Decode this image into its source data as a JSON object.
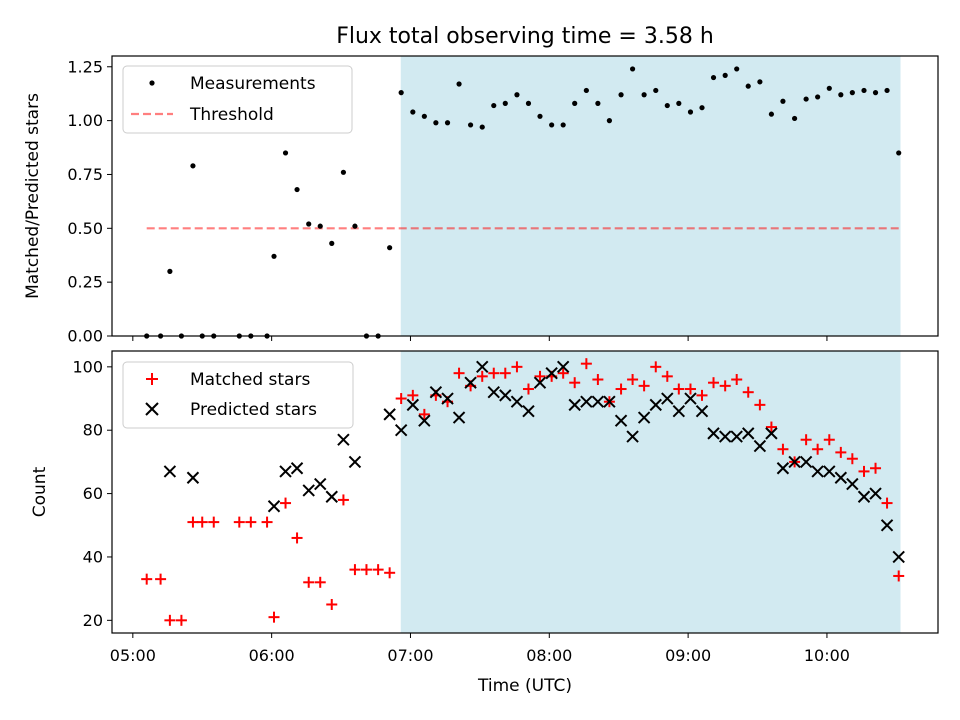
{
  "chart_data": [
    {
      "type": "scatter",
      "title": "Flux total observing time = 3.58 h",
      "xlabel": "",
      "ylabel": "Matched/Predicted stars",
      "xlim": [
        4.85,
        10.8
      ],
      "ylim": [
        0.0,
        1.3
      ],
      "yticks": [
        "0.00",
        "0.25",
        "0.50",
        "0.75",
        "1.00",
        "1.25"
      ],
      "yticks_values": [
        0.0,
        0.25,
        0.5,
        0.75,
        1.0,
        1.25
      ],
      "shaded_span": [
        6.93,
        10.53
      ],
      "shade_color": "#add8e6",
      "legend": {
        "position": "upper left",
        "entries": [
          "Measurements",
          "Threshold"
        ]
      },
      "threshold": {
        "name": "Threshold",
        "value": 0.5,
        "x_range": [
          5.1,
          10.53
        ],
        "color": "#ff0000"
      },
      "series": [
        {
          "name": "Measurements",
          "color": "#000000",
          "x": [
            5.1,
            5.2,
            5.267,
            5.35,
            5.433,
            5.5,
            5.583,
            5.767,
            5.85,
            5.967,
            6.017,
            6.1,
            6.183,
            6.267,
            6.35,
            6.433,
            6.517,
            6.6,
            6.683,
            6.767,
            6.85,
            6.933,
            7.017,
            7.1,
            7.183,
            7.267,
            7.35,
            7.433,
            7.517,
            7.6,
            7.683,
            7.767,
            7.85,
            7.933,
            8.017,
            8.1,
            8.183,
            8.267,
            8.35,
            8.433,
            8.517,
            8.6,
            8.683,
            8.767,
            8.85,
            8.933,
            9.017,
            9.1,
            9.183,
            9.267,
            9.35,
            9.433,
            9.517,
            9.6,
            9.683,
            9.767,
            9.85,
            9.933,
            10.017,
            10.1,
            10.183,
            10.267,
            10.35,
            10.433,
            10.517
          ],
          "values": [
            0,
            0,
            0.3,
            0,
            0.79,
            0,
            0,
            0,
            0,
            0,
            0.37,
            0.85,
            0.68,
            0.52,
            0.51,
            0.43,
            0.76,
            0.51,
            0,
            0,
            0.41,
            1.13,
            1.04,
            1.02,
            0.99,
            0.99,
            1.17,
            0.98,
            0.97,
            1.07,
            1.08,
            1.12,
            1.08,
            1.02,
            0.98,
            0.98,
            1.08,
            1.14,
            1.08,
            1.0,
            1.12,
            1.24,
            1.12,
            1.14,
            1.07,
            1.08,
            1.04,
            1.06,
            1.2,
            1.21,
            1.24,
            1.16,
            1.18,
            1.03,
            1.09,
            1.01,
            1.1,
            1.11,
            1.15,
            1.12,
            1.13,
            1.14,
            1.13,
            1.14,
            0.85
          ]
        }
      ]
    },
    {
      "type": "scatter",
      "title": "",
      "xlabel": "Time (UTC)",
      "ylabel": "Count",
      "xlim": [
        4.85,
        10.8
      ],
      "ylim": [
        16,
        105
      ],
      "xticks": [
        "05:00",
        "06:00",
        "07:00",
        "08:00",
        "09:00",
        "10:00"
      ],
      "xticks_values": [
        5,
        6,
        7,
        8,
        9,
        10
      ],
      "yticks": [
        "20",
        "40",
        "60",
        "80",
        "100"
      ],
      "yticks_values": [
        20,
        40,
        60,
        80,
        100
      ],
      "shaded_span": [
        6.93,
        10.53
      ],
      "shade_color": "#add8e6",
      "legend": {
        "position": "upper left",
        "entries": [
          "Matched stars",
          "Predicted stars"
        ]
      },
      "series": [
        {
          "name": "Matched stars",
          "marker": "+",
          "color": "#ff0000",
          "x": [
            5.1,
            5.2,
            5.267,
            5.35,
            5.433,
            5.5,
            5.583,
            5.767,
            5.85,
            5.967,
            6.017,
            6.1,
            6.183,
            6.267,
            6.35,
            6.433,
            6.517,
            6.6,
            6.683,
            6.767,
            6.85,
            6.933,
            7.017,
            7.1,
            7.183,
            7.267,
            7.35,
            7.433,
            7.517,
            7.6,
            7.683,
            7.767,
            7.85,
            7.933,
            8.017,
            8.1,
            8.183,
            8.267,
            8.35,
            8.433,
            8.517,
            8.6,
            8.683,
            8.767,
            8.85,
            8.933,
            9.017,
            9.1,
            9.183,
            9.267,
            9.35,
            9.433,
            9.517,
            9.6,
            9.683,
            9.767,
            9.85,
            9.933,
            10.017,
            10.1,
            10.183,
            10.267,
            10.35,
            10.433,
            10.517
          ],
          "values": [
            33,
            33,
            20,
            20,
            51,
            51,
            51,
            51,
            51,
            51,
            21,
            57,
            46,
            32,
            32,
            25,
            58,
            36,
            36,
            36,
            35,
            90,
            91,
            85,
            91,
            89,
            98,
            94,
            97,
            98,
            98,
            100,
            93,
            97,
            97,
            98,
            95,
            101,
            96,
            89,
            93,
            96,
            94,
            100,
            97,
            93,
            93,
            91,
            95,
            94,
            96,
            92,
            88,
            81,
            74,
            70,
            77,
            74,
            77,
            73,
            71,
            67,
            68,
            57,
            34
          ]
        },
        {
          "name": "Predicted stars",
          "marker": "x",
          "color": "#000000",
          "x": [
            5.267,
            5.433,
            6.017,
            6.1,
            6.183,
            6.267,
            6.35,
            6.433,
            6.517,
            6.6,
            6.85,
            6.933,
            7.017,
            7.1,
            7.183,
            7.267,
            7.35,
            7.433,
            7.517,
            7.6,
            7.683,
            7.767,
            7.85,
            7.933,
            8.017,
            8.1,
            8.183,
            8.267,
            8.35,
            8.433,
            8.517,
            8.6,
            8.683,
            8.767,
            8.85,
            8.933,
            9.017,
            9.1,
            9.183,
            9.267,
            9.35,
            9.433,
            9.517,
            9.6,
            9.683,
            9.767,
            9.85,
            9.933,
            10.017,
            10.1,
            10.183,
            10.267,
            10.35,
            10.433,
            10.517
          ],
          "values": [
            67,
            65,
            56,
            67,
            68,
            61,
            63,
            59,
            77,
            70,
            85,
            80,
            88,
            83,
            92,
            90,
            84,
            95,
            100,
            92,
            91,
            89,
            86,
            95,
            98,
            100,
            88,
            89,
            89,
            89,
            83,
            78,
            84,
            88,
            90,
            86,
            90,
            86,
            79,
            78,
            78,
            79,
            75,
            79,
            68,
            70,
            70,
            67,
            67,
            65,
            63,
            59,
            60,
            50,
            40
          ]
        }
      ]
    }
  ]
}
